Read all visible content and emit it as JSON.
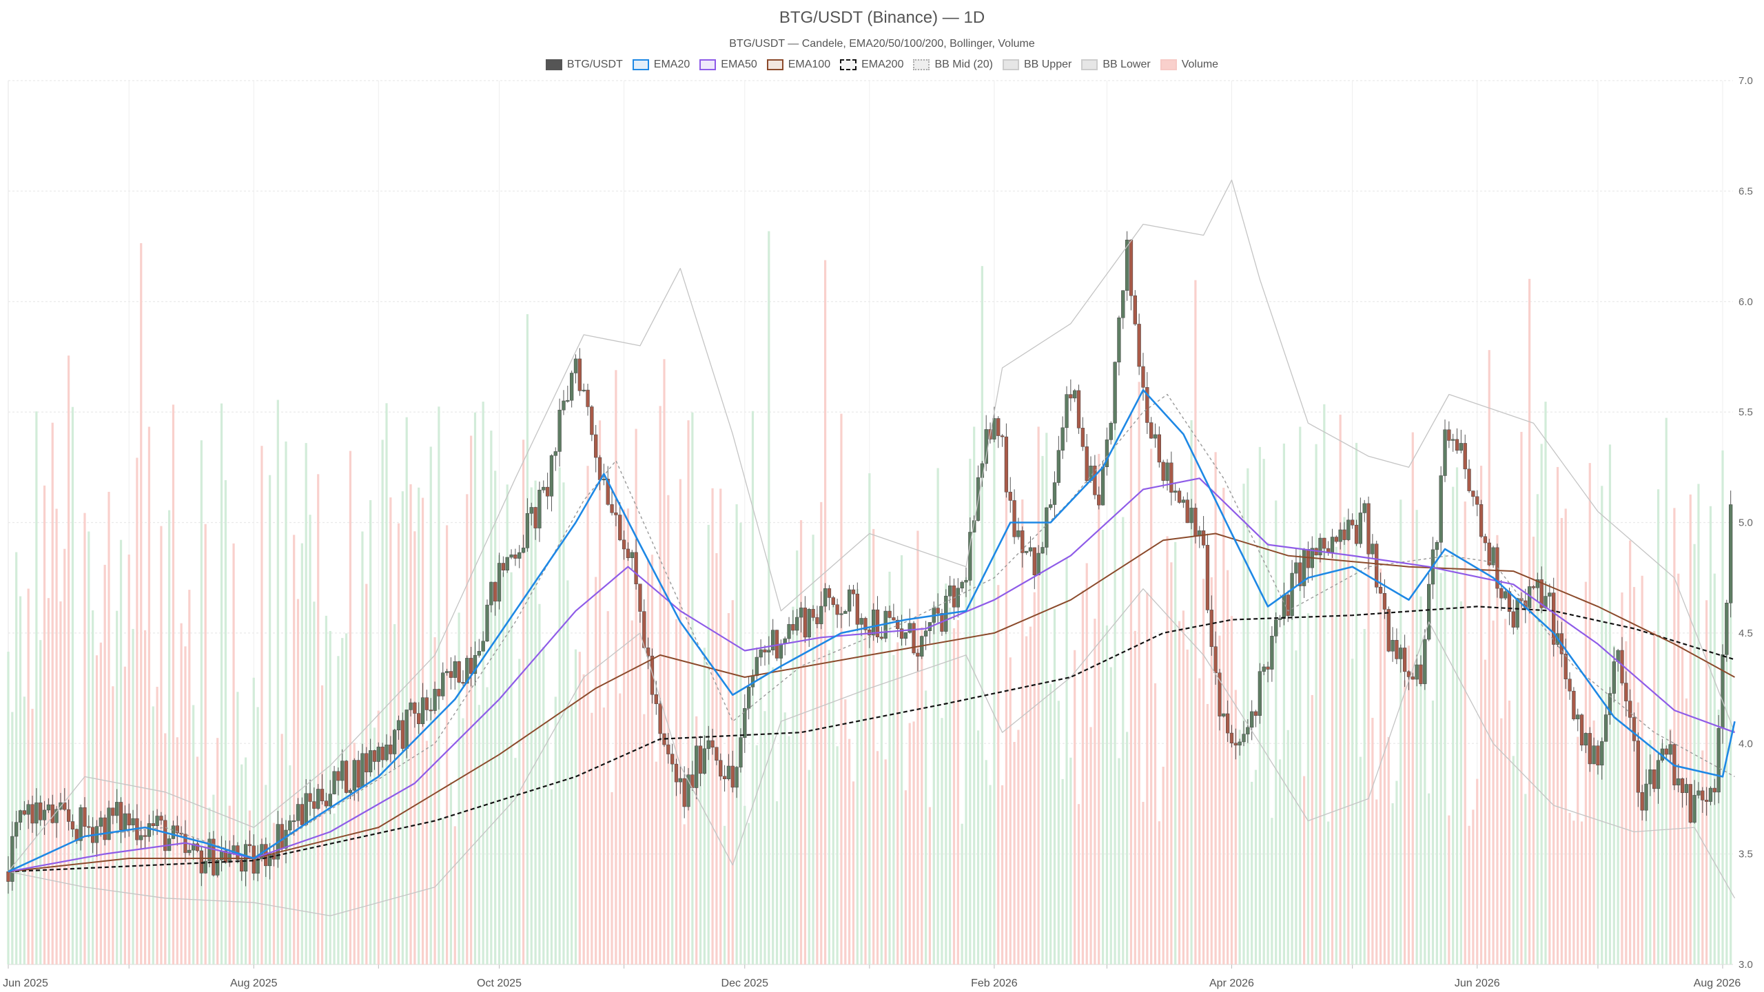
{
  "chart_data": {
    "type": "candlestick",
    "title": "BTG/USDT (Binance) — 1D",
    "subtitle": "BTG/USDT — Candele, EMA20/50/100/200, Bollinger, Volume",
    "legend": [
      {
        "label": "BTG/USDT",
        "color": "#555555",
        "fill": "#555555",
        "style": "solid"
      },
      {
        "label": "EMA20",
        "color": "#1e88e5",
        "fill": "#e3eef9",
        "style": "solid"
      },
      {
        "label": "EMA50",
        "color": "#8e5be8",
        "fill": "#efe9fb",
        "style": "solid"
      },
      {
        "label": "EMA100",
        "color": "#8b4a2b",
        "fill": "#f2e6df",
        "style": "solid"
      },
      {
        "label": "EMA200",
        "color": "#111111",
        "fill": "#f5f5f5",
        "style": "dashed"
      },
      {
        "label": "BB Mid (20)",
        "color": "#aaaaaa",
        "fill": "#eeeeee",
        "style": "dotted"
      },
      {
        "label": "BB Upper",
        "color": "#cccccc",
        "fill": "#e6e6e6",
        "style": "solid"
      },
      {
        "label": "BB Lower",
        "color": "#cccccc",
        "fill": "#e6e6e6",
        "style": "solid"
      },
      {
        "label": "Volume",
        "color": "#f6c9c5",
        "fill": "#f9d0cc",
        "style": "solid"
      }
    ],
    "y_axis": {
      "min": 3.0,
      "max": 7.0,
      "ticks": [
        "3.0",
        "3.5",
        "4.0",
        "4.5",
        "5.0",
        "5.5",
        "6.0",
        "6.5",
        "7.0"
      ],
      "position": "right"
    },
    "x_axis": {
      "range": [
        "2025-06-01",
        "2026-08-01"
      ],
      "tick_labels": [
        "Jun 2025",
        "Aug 2025",
        "Oct 2025",
        "Dec 2025",
        "Feb 2026",
        "Apr 2026",
        "Jun 2026",
        "Aug 2026"
      ]
    },
    "grid": true,
    "legend_position": "top-center",
    "colors": {
      "up": "#5e7d63",
      "down": "#a85a48",
      "vol_up": "#d2ecd9",
      "vol_down": "#f9d0cc"
    },
    "close_path": [
      [
        "2025-06-01",
        3.42
      ],
      [
        "2025-06-05",
        3.72
      ],
      [
        "2025-06-12",
        3.66
      ],
      [
        "2025-06-20",
        3.62
      ],
      [
        "2025-06-28",
        3.66
      ],
      [
        "2025-07-08",
        3.62
      ],
      [
        "2025-07-16",
        3.48
      ],
      [
        "2025-07-25",
        3.5
      ],
      [
        "2025-08-01",
        3.45
      ],
      [
        "2025-08-08",
        3.6
      ],
      [
        "2025-08-18",
        3.78
      ],
      [
        "2025-08-28",
        3.9
      ],
      [
        "2025-09-06",
        4.05
      ],
      [
        "2025-09-15",
        4.2
      ],
      [
        "2025-09-24",
        4.4
      ],
      [
        "2025-10-02",
        4.8
      ],
      [
        "2025-10-12",
        5.1
      ],
      [
        "2025-10-20",
        5.75
      ],
      [
        "2025-10-26",
        5.25
      ],
      [
        "2025-11-01",
        4.95
      ],
      [
        "2025-11-05",
        4.6
      ],
      [
        "2025-11-10",
        4.0
      ],
      [
        "2025-11-16",
        3.75
      ],
      [
        "2025-11-22",
        4.05
      ],
      [
        "2025-11-28",
        3.8
      ],
      [
        "2025-12-04",
        4.4
      ],
      [
        "2025-12-14",
        4.55
      ],
      [
        "2025-12-24",
        4.65
      ],
      [
        "2026-01-03",
        4.55
      ],
      [
        "2026-01-14",
        4.45
      ],
      [
        "2026-01-24",
        4.7
      ],
      [
        "2026-02-01",
        5.55
      ],
      [
        "2026-02-06",
        5.0
      ],
      [
        "2026-02-12",
        4.8
      ],
      [
        "2026-02-20",
        5.6
      ],
      [
        "2026-02-27",
        5.0
      ],
      [
        "2026-03-06",
        6.2
      ],
      [
        "2026-03-10",
        5.6
      ],
      [
        "2026-03-16",
        5.2
      ],
      [
        "2026-03-24",
        5.0
      ],
      [
        "2026-03-29",
        4.1
      ],
      [
        "2026-04-03",
        3.95
      ],
      [
        "2026-04-10",
        4.4
      ],
      [
        "2026-04-18",
        4.8
      ],
      [
        "2026-04-26",
        4.9
      ],
      [
        "2026-05-04",
        5.0
      ],
      [
        "2026-05-10",
        4.5
      ],
      [
        "2026-05-18",
        4.3
      ],
      [
        "2026-05-24",
        5.35
      ],
      [
        "2026-05-28",
        5.3
      ],
      [
        "2026-06-03",
        4.9
      ],
      [
        "2026-06-10",
        4.6
      ],
      [
        "2026-06-18",
        4.7
      ],
      [
        "2026-06-24",
        4.2
      ],
      [
        "2026-06-30",
        3.9
      ],
      [
        "2026-07-06",
        4.4
      ],
      [
        "2026-07-12",
        3.75
      ],
      [
        "2026-07-18",
        4.0
      ],
      [
        "2026-07-24",
        3.7
      ],
      [
        "2026-07-30",
        3.85
      ],
      [
        "2026-08-03",
        5.0
      ]
    ],
    "series": [
      {
        "name": "EMA20",
        "color": "#1e88e5",
        "points": [
          [
            "2025-06-01",
            3.42
          ],
          [
            "2025-06-20",
            3.58
          ],
          [
            "2025-07-05",
            3.62
          ],
          [
            "2025-07-20",
            3.55
          ],
          [
            "2025-08-01",
            3.48
          ],
          [
            "2025-08-15",
            3.65
          ],
          [
            "2025-09-01",
            3.85
          ],
          [
            "2025-09-20",
            4.2
          ],
          [
            "2025-10-05",
            4.6
          ],
          [
            "2025-10-20",
            5.0
          ],
          [
            "2025-10-27",
            5.22
          ],
          [
            "2025-11-05",
            4.9
          ],
          [
            "2025-11-15",
            4.55
          ],
          [
            "2025-11-28",
            4.22
          ],
          [
            "2025-12-10",
            4.35
          ],
          [
            "2025-12-25",
            4.5
          ],
          [
            "2026-01-10",
            4.56
          ],
          [
            "2026-01-25",
            4.6
          ],
          [
            "2026-02-05",
            5.0
          ],
          [
            "2026-02-15",
            5.0
          ],
          [
            "2026-02-28",
            5.25
          ],
          [
            "2026-03-10",
            5.6
          ],
          [
            "2026-03-20",
            5.4
          ],
          [
            "2026-04-01",
            4.95
          ],
          [
            "2026-04-10",
            4.62
          ],
          [
            "2026-04-20",
            4.75
          ],
          [
            "2026-05-01",
            4.8
          ],
          [
            "2026-05-15",
            4.65
          ],
          [
            "2026-05-24",
            4.88
          ],
          [
            "2026-06-05",
            4.75
          ],
          [
            "2026-06-20",
            4.5
          ],
          [
            "2026-07-05",
            4.12
          ],
          [
            "2026-07-20",
            3.9
          ],
          [
            "2026-08-01",
            3.85
          ],
          [
            "2026-08-04",
            4.1
          ]
        ]
      },
      {
        "name": "EMA50",
        "color": "#8e5be8",
        "points": [
          [
            "2025-06-01",
            3.42
          ],
          [
            "2025-06-25",
            3.5
          ],
          [
            "2025-07-15",
            3.55
          ],
          [
            "2025-08-01",
            3.48
          ],
          [
            "2025-08-20",
            3.6
          ],
          [
            "2025-09-10",
            3.82
          ],
          [
            "2025-10-01",
            4.2
          ],
          [
            "2025-10-20",
            4.6
          ],
          [
            "2025-11-02",
            4.8
          ],
          [
            "2025-11-15",
            4.6
          ],
          [
            "2025-12-01",
            4.42
          ],
          [
            "2025-12-20",
            4.48
          ],
          [
            "2026-01-15",
            4.52
          ],
          [
            "2026-02-01",
            4.65
          ],
          [
            "2026-02-20",
            4.85
          ],
          [
            "2026-03-10",
            5.15
          ],
          [
            "2026-03-24",
            5.2
          ],
          [
            "2026-04-10",
            4.9
          ],
          [
            "2026-05-01",
            4.85
          ],
          [
            "2026-05-20",
            4.8
          ],
          [
            "2026-06-10",
            4.72
          ],
          [
            "2026-07-01",
            4.45
          ],
          [
            "2026-07-20",
            4.15
          ],
          [
            "2026-08-04",
            4.05
          ]
        ]
      },
      {
        "name": "EMA100",
        "color": "#8b4a2b",
        "points": [
          [
            "2025-06-01",
            3.42
          ],
          [
            "2025-07-01",
            3.48
          ],
          [
            "2025-08-01",
            3.48
          ],
          [
            "2025-09-01",
            3.62
          ],
          [
            "2025-10-01",
            3.95
          ],
          [
            "2025-10-25",
            4.25
          ],
          [
            "2025-11-10",
            4.4
          ],
          [
            "2025-12-01",
            4.3
          ],
          [
            "2026-01-01",
            4.4
          ],
          [
            "2026-02-01",
            4.5
          ],
          [
            "2026-02-20",
            4.65
          ],
          [
            "2026-03-15",
            4.92
          ],
          [
            "2026-03-28",
            4.95
          ],
          [
            "2026-04-15",
            4.85
          ],
          [
            "2026-05-15",
            4.8
          ],
          [
            "2026-06-10",
            4.78
          ],
          [
            "2026-07-01",
            4.62
          ],
          [
            "2026-07-20",
            4.45
          ],
          [
            "2026-08-04",
            4.3
          ]
        ]
      },
      {
        "name": "EMA200",
        "color": "#111111",
        "points": [
          [
            "2025-06-01",
            3.42
          ],
          [
            "2025-08-01",
            3.47
          ],
          [
            "2025-09-15",
            3.65
          ],
          [
            "2025-10-20",
            3.85
          ],
          [
            "2025-11-10",
            4.02
          ],
          [
            "2025-12-15",
            4.05
          ],
          [
            "2026-01-20",
            4.18
          ],
          [
            "2026-02-20",
            4.3
          ],
          [
            "2026-03-15",
            4.5
          ],
          [
            "2026-04-01",
            4.56
          ],
          [
            "2026-05-01",
            4.58
          ],
          [
            "2026-06-01",
            4.62
          ],
          [
            "2026-06-20",
            4.6
          ],
          [
            "2026-07-10",
            4.52
          ],
          [
            "2026-08-04",
            4.38
          ]
        ]
      },
      {
        "name": "BB Mid (20)",
        "color": "#999999",
        "points": [
          [
            "2025-06-01",
            3.42
          ],
          [
            "2025-06-20",
            3.58
          ],
          [
            "2025-07-10",
            3.62
          ],
          [
            "2025-08-01",
            3.48
          ],
          [
            "2025-08-20",
            3.7
          ],
          [
            "2025-09-15",
            4.0
          ],
          [
            "2025-10-05",
            4.55
          ],
          [
            "2025-10-22",
            5.1
          ],
          [
            "2025-10-30",
            5.28
          ],
          [
            "2025-11-12",
            4.75
          ],
          [
            "2025-11-28",
            4.1
          ],
          [
            "2025-12-15",
            4.35
          ],
          [
            "2026-01-10",
            4.55
          ],
          [
            "2026-02-01",
            4.75
          ],
          [
            "2026-02-20",
            5.1
          ],
          [
            "2026-03-10",
            5.5
          ],
          [
            "2026-03-16",
            5.58
          ],
          [
            "2026-03-30",
            5.2
          ],
          [
            "2026-04-15",
            4.6
          ],
          [
            "2026-05-05",
            4.8
          ],
          [
            "2026-05-25",
            4.85
          ],
          [
            "2026-06-05",
            4.82
          ],
          [
            "2026-06-25",
            4.35
          ],
          [
            "2026-07-15",
            4.05
          ],
          [
            "2026-08-04",
            3.85
          ]
        ]
      },
      {
        "name": "BB Upper",
        "color": "#c4c4c4",
        "points": [
          [
            "2025-06-01",
            3.42
          ],
          [
            "2025-06-20",
            3.85
          ],
          [
            "2025-07-10",
            3.78
          ],
          [
            "2025-08-01",
            3.62
          ],
          [
            "2025-08-20",
            3.9
          ],
          [
            "2025-09-15",
            4.4
          ],
          [
            "2025-10-05",
            5.2
          ],
          [
            "2025-10-22",
            5.85
          ],
          [
            "2025-11-05",
            5.8
          ],
          [
            "2025-11-15",
            6.15
          ],
          [
            "2025-11-28",
            5.4
          ],
          [
            "2025-12-10",
            4.6
          ],
          [
            "2026-01-01",
            4.95
          ],
          [
            "2026-01-25",
            4.8
          ],
          [
            "2026-02-03",
            5.7
          ],
          [
            "2026-02-20",
            5.9
          ],
          [
            "2026-03-10",
            6.35
          ],
          [
            "2026-03-25",
            6.3
          ],
          [
            "2026-04-01",
            6.55
          ],
          [
            "2026-04-08",
            6.1
          ],
          [
            "2026-04-20",
            5.45
          ],
          [
            "2026-05-05",
            5.3
          ],
          [
            "2026-05-15",
            5.25
          ],
          [
            "2026-05-25",
            5.58
          ],
          [
            "2026-06-15",
            5.45
          ],
          [
            "2026-07-01",
            5.05
          ],
          [
            "2026-07-20",
            4.75
          ],
          [
            "2026-08-04",
            4.05
          ]
        ]
      },
      {
        "name": "BB Lower",
        "color": "#c4c4c4",
        "points": [
          [
            "2025-06-01",
            3.42
          ],
          [
            "2025-06-20",
            3.35
          ],
          [
            "2025-07-10",
            3.3
          ],
          [
            "2025-08-01",
            3.28
          ],
          [
            "2025-08-20",
            3.22
          ],
          [
            "2025-09-15",
            3.35
          ],
          [
            "2025-10-05",
            3.75
          ],
          [
            "2025-10-22",
            4.3
          ],
          [
            "2025-11-05",
            4.5
          ],
          [
            "2025-11-15",
            3.9
          ],
          [
            "2025-11-28",
            3.45
          ],
          [
            "2025-12-10",
            4.1
          ],
          [
            "2026-01-01",
            4.25
          ],
          [
            "2026-01-25",
            4.4
          ],
          [
            "2026-02-03",
            4.05
          ],
          [
            "2026-02-20",
            4.3
          ],
          [
            "2026-03-10",
            4.7
          ],
          [
            "2026-03-25",
            4.4
          ],
          [
            "2026-04-08",
            4.0
          ],
          [
            "2026-04-20",
            3.65
          ],
          [
            "2026-05-05",
            3.75
          ],
          [
            "2026-05-20",
            4.55
          ],
          [
            "2026-06-05",
            4.0
          ],
          [
            "2026-06-20",
            3.72
          ],
          [
            "2026-07-10",
            3.6
          ],
          [
            "2026-07-25",
            3.62
          ],
          [
            "2026-08-04",
            3.3
          ]
        ]
      }
    ]
  }
}
